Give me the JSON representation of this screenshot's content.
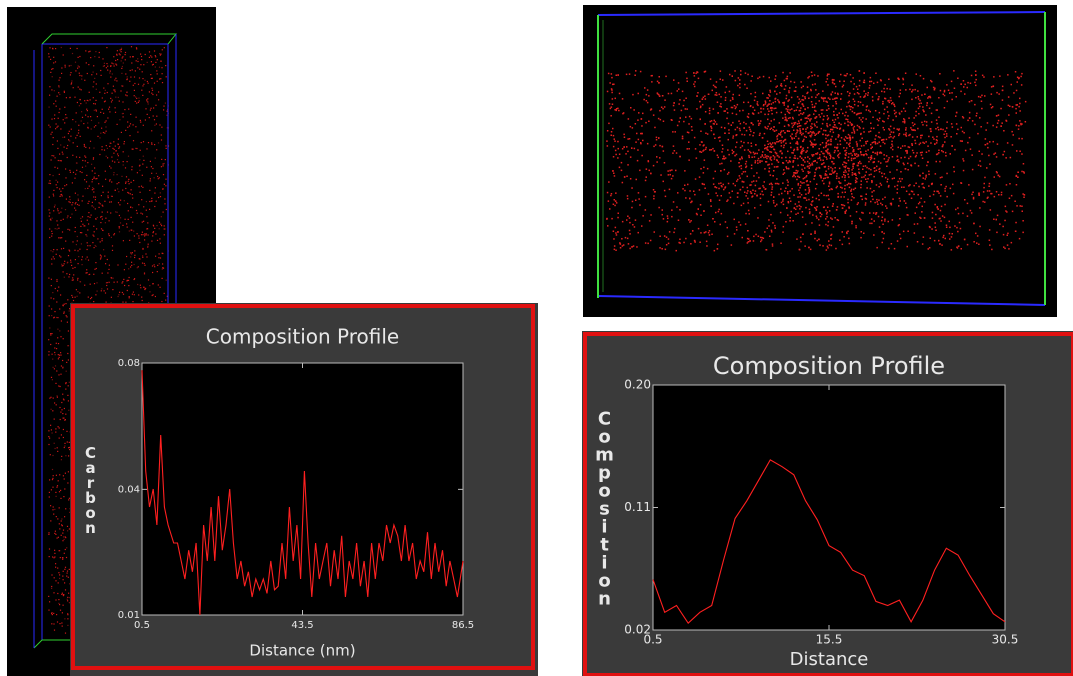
{
  "chart_data": [
    {
      "type": "line",
      "title": "Composition Profile",
      "xlabel": "Distance (nm)",
      "ylabel": "Carbon",
      "x": [
        0.5,
        1.5,
        2.5,
        3.5,
        4.5,
        5.5,
        6.5,
        7.5,
        9,
        10,
        11,
        12,
        13,
        14,
        15,
        16,
        17,
        18,
        19,
        20,
        21,
        22,
        23,
        24,
        25,
        26,
        27,
        28,
        29,
        30,
        31,
        32,
        33,
        34,
        35,
        36,
        37,
        38,
        39,
        40,
        41,
        42,
        43,
        44,
        45,
        46,
        47,
        48,
        49,
        50,
        51,
        52,
        53,
        54,
        55,
        56,
        57,
        58,
        59,
        60,
        61,
        62,
        63,
        64,
        65,
        66,
        67,
        68,
        69,
        70,
        71,
        72,
        73,
        74,
        75,
        76,
        77,
        78,
        79,
        80,
        81,
        82,
        83,
        84,
        85,
        86.5
      ],
      "values": [
        0.078,
        0.05,
        0.04,
        0.045,
        0.035,
        0.06,
        0.04,
        0.035,
        0.03,
        0.03,
        0.025,
        0.02,
        0.028,
        0.022,
        0.03,
        0.01,
        0.035,
        0.025,
        0.04,
        0.025,
        0.043,
        0.028,
        0.035,
        0.045,
        0.03,
        0.02,
        0.025,
        0.018,
        0.022,
        0.015,
        0.02,
        0.017,
        0.02,
        0.016,
        0.025,
        0.017,
        0.018,
        0.03,
        0.02,
        0.04,
        0.025,
        0.035,
        0.02,
        0.05,
        0.03,
        0.015,
        0.03,
        0.02,
        0.025,
        0.03,
        0.018,
        0.028,
        0.02,
        0.032,
        0.015,
        0.025,
        0.02,
        0.03,
        0.018,
        0.025,
        0.015,
        0.03,
        0.02,
        0.03,
        0.025,
        0.035,
        0.03,
        0.035,
        0.032,
        0.025,
        0.035,
        0.025,
        0.03,
        0.02,
        0.025,
        0.022,
        0.033,
        0.02,
        0.03,
        0.022,
        0.028,
        0.018,
        0.025,
        0.02,
        0.015,
        0.025
      ],
      "color": "#ff2020",
      "xlim": [
        0.5,
        86.5
      ],
      "ylim": [
        0.01,
        0.08
      ],
      "xticks": [
        0.5,
        43.5,
        86.5
      ],
      "yticks": [
        0.01,
        {
          "value": 0.0449,
          "label": "0.04"
        },
        0.08
      ]
    },
    {
      "type": "line",
      "title": "Composition Profile",
      "xlabel": "Distance",
      "ylabel": "Composition",
      "x": [
        0.5,
        1.5,
        2.5,
        3.5,
        4.5,
        5.5,
        6.5,
        7.5,
        8.5,
        9.5,
        10.5,
        11.5,
        12.5,
        13.5,
        14.5,
        15.5,
        16.5,
        17.5,
        18.5,
        19.5,
        20.5,
        21.5,
        22.5,
        23.5,
        24.5,
        25.5,
        26.5,
        27.5,
        28.5,
        29.5,
        30.5
      ],
      "values": [
        0.057,
        0.033,
        0.038,
        0.025,
        0.033,
        0.038,
        0.071,
        0.102,
        0.115,
        0.13,
        0.145,
        0.14,
        0.134,
        0.115,
        0.101,
        0.082,
        0.077,
        0.064,
        0.06,
        0.041,
        0.038,
        0.042,
        0.026,
        0.042,
        0.064,
        0.08,
        0.075,
        0.06,
        0.046,
        0.032,
        0.026
      ],
      "color": "#ff2020",
      "xlim": [
        0.5,
        30.5
      ],
      "ylim": [
        0.02,
        0.2
      ],
      "xticks": [
        0.5,
        15.5,
        30.5
      ],
      "yticks": [
        0.02,
        0.11,
        {
          "value": 0.2,
          "label": "0.20"
        }
      ]
    }
  ]
}
